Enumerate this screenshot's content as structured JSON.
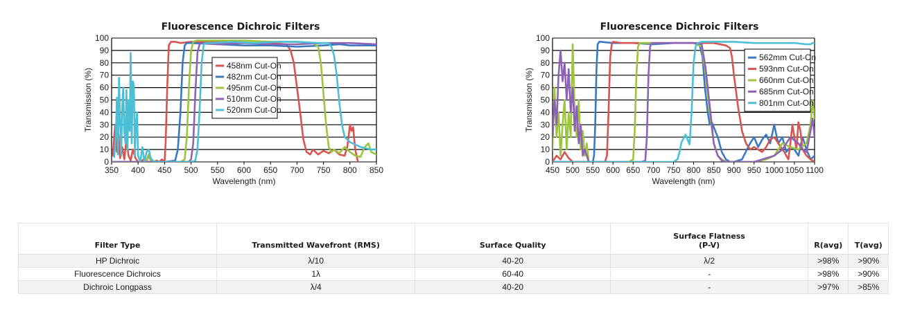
{
  "charts": [
    {
      "title": "Fluorescence Dichroic Filters",
      "xlabel": "Wavelength (nm)",
      "ylabel": "Transmission (%)",
      "xlim": [
        350,
        850
      ],
      "ylim": [
        0,
        100
      ],
      "xticks": [
        350,
        400,
        450,
        500,
        550,
        600,
        650,
        700,
        750,
        800,
        850
      ],
      "yticks": [
        0,
        10,
        20,
        30,
        40,
        50,
        60,
        70,
        80,
        90,
        100
      ]
    },
    {
      "title": "Fluorescence Dichroic Filters",
      "xlabel": "Wavelength (nm)",
      "ylabel": "Transmission (%)",
      "xlim": [
        450,
        1100
      ],
      "ylim": [
        0,
        100
      ],
      "xticks": [
        450,
        500,
        550,
        600,
        650,
        700,
        750,
        800,
        850,
        900,
        950,
        1000,
        1050,
        1100
      ],
      "yticks": [
        0,
        10,
        20,
        30,
        40,
        50,
        60,
        70,
        80,
        90,
        100
      ]
    }
  ],
  "chart_data": [
    {
      "type": "line",
      "title": "Fluorescence Dichroic Filters",
      "xlabel": "Wavelength (nm)",
      "ylabel": "Transmission (%)",
      "xlim": [
        350,
        850
      ],
      "ylim": [
        0,
        100
      ],
      "legend_position": "center",
      "series": [
        {
          "name": "458nm Cut-On",
          "color": "#d9534f",
          "x": [
            352,
            357,
            360,
            363,
            366,
            370,
            374,
            378,
            382,
            386,
            390,
            395,
            400,
            405,
            410,
            415,
            420,
            425,
            430,
            435,
            440,
            445,
            450,
            452,
            455,
            458,
            462,
            470,
            480,
            500,
            550,
            600,
            650,
            680,
            688,
            694,
            700,
            706,
            712,
            718,
            725,
            730,
            740,
            750,
            760,
            770,
            780,
            790,
            795,
            800,
            803,
            806,
            810,
            815
          ],
          "y": [
            5,
            30,
            8,
            22,
            3,
            12,
            2,
            18,
            5,
            1,
            10,
            3,
            0,
            0,
            2,
            0,
            5,
            0,
            0,
            1,
            0,
            2,
            0,
            15,
            60,
            94,
            97,
            97,
            96,
            97,
            97,
            96,
            96,
            95,
            90,
            80,
            60,
            40,
            18,
            8,
            6,
            10,
            6,
            9,
            7,
            10,
            6,
            5,
            12,
            30,
            25,
            28,
            10,
            0
          ]
        },
        {
          "name": "482nm Cut-On",
          "color": "#3a78c2",
          "x": [
            350,
            400,
            450,
            470,
            475,
            480,
            484,
            488,
            492,
            500,
            550,
            600,
            650,
            700,
            750,
            780,
            800,
            820,
            850
          ],
          "y": [
            0,
            0,
            0,
            1,
            10,
            40,
            80,
            94,
            96,
            96,
            95,
            94,
            94,
            93,
            94,
            95,
            94,
            94,
            94
          ]
        },
        {
          "name": "495nm Cut-On",
          "color": "#9bc53d",
          "x": [
            350,
            400,
            415,
            420,
            425,
            450,
            480,
            488,
            492,
            496,
            500,
            504,
            510,
            550,
            600,
            650,
            700,
            730,
            740,
            745,
            750,
            755,
            760,
            765,
            770,
            780,
            790,
            800,
            810,
            820,
            828,
            835,
            840,
            850
          ],
          "y": [
            0,
            0,
            0,
            6,
            0,
            0,
            0,
            2,
            20,
            60,
            90,
            97,
            98,
            98,
            98,
            97,
            97,
            96,
            93,
            80,
            55,
            30,
            12,
            8,
            10,
            7,
            12,
            8,
            5,
            4,
            12,
            15,
            8,
            6
          ]
        },
        {
          "name": "510nm Cut-On",
          "color": "#8e63b5",
          "x": [
            350,
            450,
            495,
            500,
            504,
            508,
            512,
            516,
            520,
            550,
            600,
            650,
            700,
            750,
            800,
            850
          ],
          "y": [
            0,
            0,
            0,
            2,
            15,
            55,
            88,
            95,
            96,
            95,
            96,
            95,
            95,
            96,
            96,
            95
          ]
        },
        {
          "name": "520nm Cut-On",
          "color": "#4bbfd6",
          "x": [
            355,
            358,
            360,
            362,
            364,
            366,
            368,
            370,
            372,
            374,
            376,
            378,
            380,
            382,
            384,
            386,
            388,
            390,
            392,
            394,
            396,
            398,
            400,
            404,
            408,
            412,
            416,
            420,
            424,
            430,
            440,
            470,
            500,
            508,
            512,
            516,
            520,
            524,
            528,
            540,
            580,
            620,
            660,
            700,
            740,
            760,
            765,
            770,
            775,
            780,
            785,
            790,
            800,
            810,
            820,
            830,
            840,
            850
          ],
          "y": [
            4,
            20,
            52,
            6,
            68,
            35,
            5,
            45,
            60,
            25,
            15,
            58,
            10,
            50,
            25,
            88,
            15,
            65,
            62,
            5,
            32,
            40,
            5,
            0,
            12,
            0,
            8,
            10,
            3,
            0,
            0,
            0,
            0,
            1,
            10,
            40,
            80,
            95,
            96,
            96,
            97,
            96,
            97,
            97,
            96,
            96,
            93,
            86,
            70,
            48,
            30,
            20,
            16,
            14,
            12,
            11,
            10,
            10
          ]
        }
      ]
    },
    {
      "type": "line",
      "title": "Fluorescence Dichroic Filters",
      "xlabel": "Wavelength (nm)",
      "ylabel": "Transmission (%)",
      "xlim": [
        450,
        1100
      ],
      "ylim": [
        0,
        100
      ],
      "legend_position": "top-right",
      "series": [
        {
          "name": "562mm Cut-On",
          "color": "#3a78c2",
          "x": [
            450,
            500,
            540,
            550,
            553,
            556,
            559,
            562,
            566,
            570,
            600,
            650,
            700,
            750,
            800,
            815,
            822,
            828,
            835,
            840,
            845,
            850,
            860,
            870,
            880,
            890,
            900,
            920,
            940,
            950,
            960,
            970,
            980,
            990,
            1000,
            1005,
            1010,
            1020,
            1030,
            1040,
            1050,
            1060,
            1070,
            1080,
            1090,
            1100
          ],
          "y": [
            0,
            0,
            0,
            0,
            5,
            30,
            75,
            95,
            97,
            97,
            96,
            96,
            95,
            96,
            96,
            94,
            85,
            60,
            40,
            30,
            32,
            28,
            20,
            8,
            2,
            0,
            0,
            2,
            15,
            20,
            12,
            18,
            22,
            15,
            30,
            22,
            15,
            20,
            8,
            12,
            10,
            5,
            20,
            10,
            2,
            5
          ]
        },
        {
          "name": "593nm Cut-On",
          "color": "#d9534f",
          "x": [
            450,
            460,
            470,
            480,
            490,
            500,
            550,
            580,
            585,
            589,
            593,
            597,
            600,
            620,
            650,
            700,
            750,
            800,
            850,
            880,
            890,
            895,
            900,
            910,
            920,
            930,
            940,
            950,
            960,
            970,
            980,
            990,
            1000,
            1010,
            1020,
            1025,
            1030,
            1035,
            1040,
            1045,
            1050,
            1055,
            1060,
            1065,
            1070,
            1080,
            1090,
            1100
          ],
          "y": [
            0,
            5,
            2,
            8,
            3,
            0,
            0,
            0,
            5,
            40,
            85,
            95,
            97,
            96,
            96,
            96,
            96,
            96,
            96,
            94,
            92,
            85,
            70,
            45,
            25,
            15,
            10,
            12,
            10,
            8,
            12,
            18,
            20,
            15,
            10,
            8,
            5,
            2,
            15,
            30,
            20,
            10,
            32,
            25,
            10,
            5,
            2,
            0
          ]
        },
        {
          "name": "660nm Cut-On",
          "color": "#9bc53d",
          "x": [
            450,
            455,
            460,
            465,
            470,
            475,
            480,
            485,
            490,
            495,
            500,
            505,
            510,
            515,
            520,
            525,
            530,
            535,
            540,
            550,
            600,
            640,
            650,
            654,
            658,
            662,
            666,
            670,
            700,
            750,
            800,
            820,
            830,
            840,
            850,
            860,
            870,
            880,
            890,
            900,
            920,
            950,
            980,
            1000,
            1010,
            1020,
            1040,
            1060,
            1080,
            1090,
            1095,
            1100
          ],
          "y": [
            10,
            60,
            20,
            40,
            5,
            30,
            50,
            10,
            40,
            20,
            95,
            40,
            20,
            50,
            10,
            25,
            5,
            15,
            0,
            0,
            0,
            0,
            2,
            25,
            70,
            93,
            96,
            96,
            96,
            96,
            96,
            93,
            70,
            40,
            15,
            5,
            2,
            0,
            0,
            0,
            0,
            0,
            2,
            5,
            10,
            15,
            12,
            10,
            15,
            30,
            50,
            35
          ]
        },
        {
          "name": "685nm Cut-On",
          "color": "#8e63b5",
          "x": [
            450,
            455,
            460,
            465,
            470,
            475,
            480,
            485,
            490,
            495,
            500,
            505,
            510,
            515,
            520,
            525,
            530,
            540,
            550,
            600,
            670,
            680,
            684,
            688,
            692,
            696,
            700,
            750,
            800,
            820,
            830,
            840,
            850,
            860,
            870,
            880,
            900,
            950,
            1000,
            1020,
            1040,
            1060,
            1070,
            1080,
            1090,
            1095,
            1100
          ],
          "y": [
            20,
            50,
            30,
            70,
            90,
            65,
            80,
            50,
            75,
            40,
            60,
            25,
            45,
            15,
            30,
            5,
            10,
            0,
            0,
            0,
            0,
            1,
            20,
            70,
            93,
            96,
            96,
            96,
            96,
            95,
            75,
            45,
            15,
            5,
            1,
            0,
            0,
            0,
            5,
            10,
            20,
            15,
            10,
            8,
            25,
            35,
            20
          ]
        },
        {
          "name": "801nm Cut-On",
          "color": "#4bbfd6",
          "x": [
            450,
            500,
            550,
            600,
            650,
            700,
            750,
            760,
            765,
            770,
            780,
            790,
            795,
            800,
            805,
            810,
            820,
            850,
            900,
            950,
            1000,
            1050,
            1080,
            1090,
            1095,
            1100
          ],
          "y": [
            0,
            0,
            0,
            0,
            0,
            0,
            0,
            2,
            8,
            16,
            22,
            14,
            40,
            80,
            93,
            96,
            97,
            97,
            97,
            96,
            96,
            96,
            95,
            95,
            96,
            96
          ]
        }
      ]
    }
  ],
  "table": {
    "headers": {
      "filter_type": "Filter Type",
      "wavefront": "Transmitted Wavefront (RMS)",
      "surface_quality": "Surface Quality",
      "flatness_line1": "Surface Flatness",
      "flatness_line2": "(P-V)",
      "r_avg": "R(avg)",
      "t_avg": "T(avg)"
    },
    "rows": [
      {
        "filter_type": "HP Dichroic",
        "wavefront": "λ/10",
        "surface_quality": "40-20",
        "flatness": "λ/2",
        "r_avg": ">98%",
        "t_avg": ">90%"
      },
      {
        "filter_type": "Fluorescence Dichroics",
        "wavefront": "1λ",
        "surface_quality": "60-40",
        "flatness": "-",
        "r_avg": ">98%",
        "t_avg": ">90%"
      },
      {
        "filter_type": "Dichroic Longpass",
        "wavefront": "λ/4",
        "surface_quality": "40-20",
        "flatness": "-",
        "r_avg": ">97%",
        "t_avg": ">85%"
      }
    ]
  }
}
